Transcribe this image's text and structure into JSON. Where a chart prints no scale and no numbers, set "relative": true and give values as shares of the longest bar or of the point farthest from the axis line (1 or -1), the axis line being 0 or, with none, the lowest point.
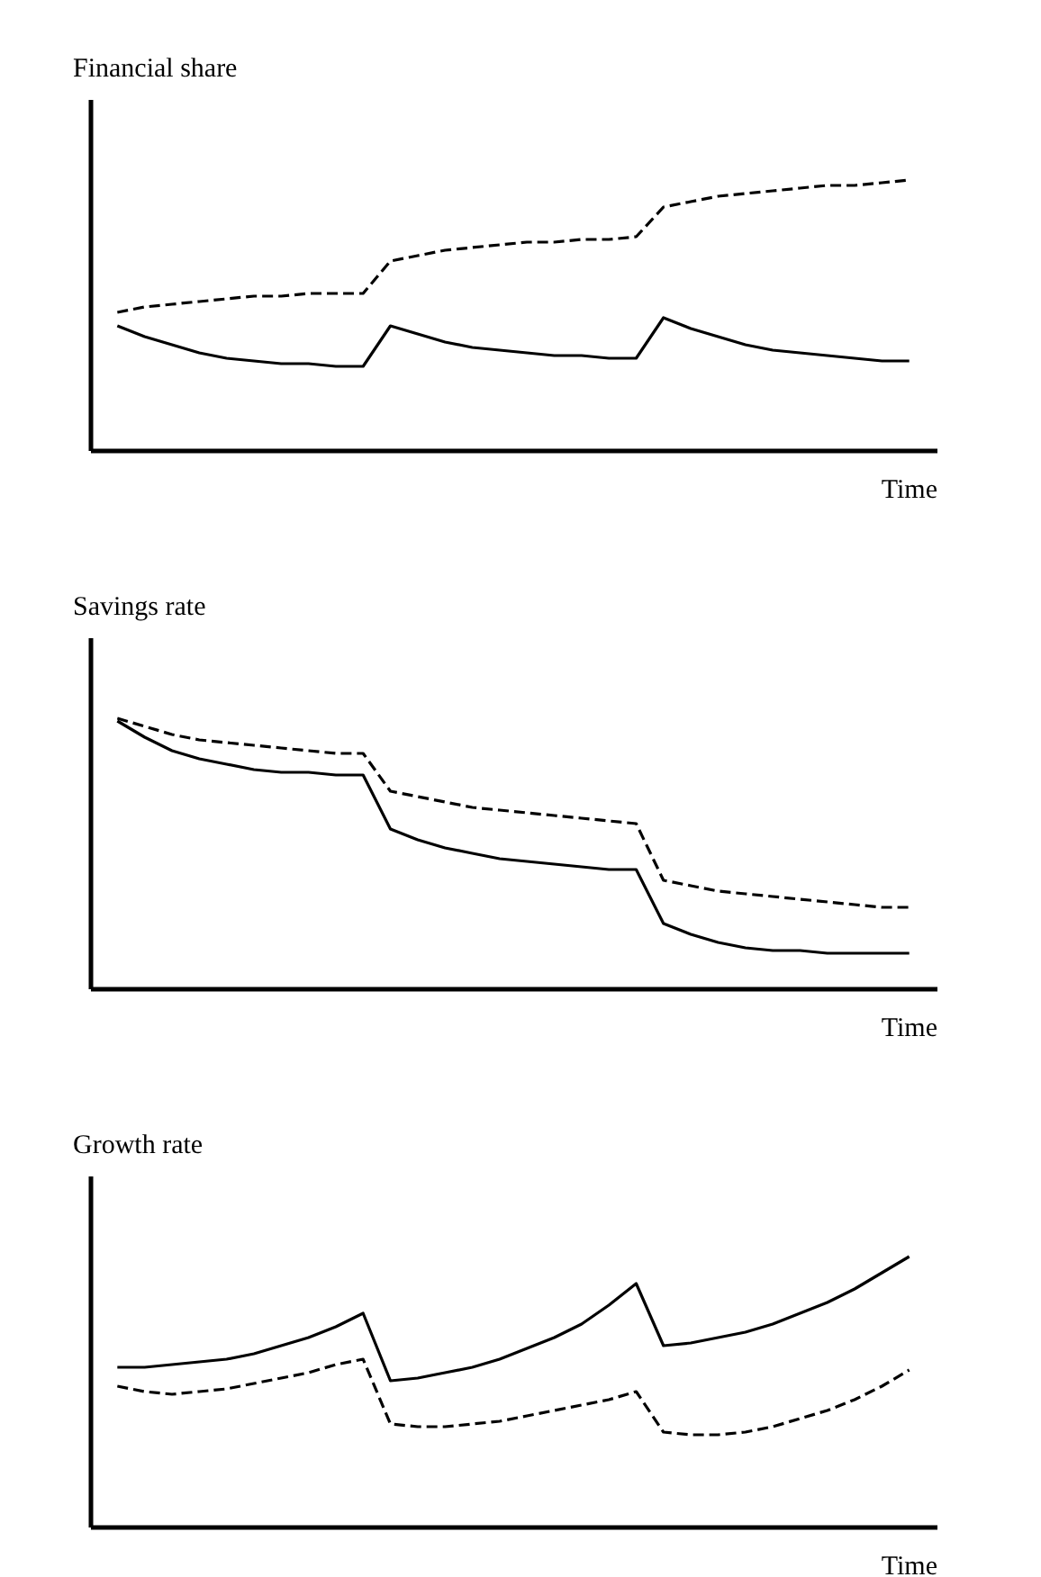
{
  "chart_data": [
    {
      "type": "line",
      "relative": true,
      "ylabel": "Financial share",
      "xlabel": "Time",
      "categories": [
        null,
        null,
        null,
        null,
        null,
        null,
        null,
        null,
        null,
        null,
        null,
        null,
        null,
        null,
        null,
        null,
        null,
        null,
        null,
        null,
        null,
        null,
        null,
        null,
        null,
        null,
        null,
        null,
        null,
        null
      ],
      "tick_labels": false,
      "grid": false,
      "series": [
        {
          "color": "#000000",
          "line_style": "dashed",
          "values": [
            0.51,
            0.53,
            0.54,
            0.55,
            0.56,
            0.57,
            0.57,
            0.58,
            0.58,
            0.58,
            0.7,
            0.72,
            0.74,
            0.75,
            0.76,
            0.77,
            0.77,
            0.78,
            0.78,
            0.79,
            0.9,
            0.92,
            0.94,
            0.95,
            0.96,
            0.97,
            0.98,
            0.98,
            0.99,
            1
          ]
        },
        {
          "color": "#000000",
          "line_style": "solid",
          "values": [
            0.46,
            0.42,
            0.39,
            0.36,
            0.34,
            0.33,
            0.32,
            0.32,
            0.31,
            0.31,
            0.46,
            0.43,
            0.4,
            0.38,
            0.37,
            0.36,
            0.35,
            0.35,
            0.34,
            0.34,
            0.49,
            0.45,
            0.42,
            0.39,
            0.37,
            0.36,
            0.35,
            0.34,
            0.33,
            0.33
          ]
        }
      ]
    },
    {
      "type": "line",
      "relative": true,
      "ylabel": "Savings rate",
      "xlabel": "Time",
      "categories": [
        null,
        null,
        null,
        null,
        null,
        null,
        null,
        null,
        null,
        null,
        null,
        null,
        null,
        null,
        null,
        null,
        null,
        null,
        null,
        null,
        null,
        null,
        null,
        null,
        null,
        null,
        null,
        null,
        null,
        null
      ],
      "tick_labels": false,
      "grid": false,
      "series": [
        {
          "color": "#000000",
          "line_style": "dashed",
          "values": [
            1,
            0.97,
            0.94,
            0.92,
            0.91,
            0.9,
            0.89,
            0.88,
            0.87,
            0.87,
            0.73,
            0.71,
            0.69,
            0.67,
            0.66,
            0.65,
            0.64,
            0.63,
            0.62,
            0.61,
            0.4,
            0.38,
            0.36,
            0.35,
            0.34,
            0.33,
            0.32,
            0.31,
            0.3,
            0.3
          ]
        },
        {
          "color": "#000000",
          "line_style": "solid",
          "values": [
            0.99,
            0.93,
            0.88,
            0.85,
            0.83,
            0.81,
            0.8,
            0.8,
            0.79,
            0.79,
            0.59,
            0.55,
            0.52,
            0.5,
            0.48,
            0.47,
            0.46,
            0.45,
            0.44,
            0.44,
            0.24,
            0.2,
            0.17,
            0.15,
            0.14,
            0.14,
            0.13,
            0.13,
            0.13,
            0.13
          ]
        }
      ]
    },
    {
      "type": "line",
      "relative": true,
      "ylabel": "Growth rate",
      "xlabel": "Time",
      "categories": [
        null,
        null,
        null,
        null,
        null,
        null,
        null,
        null,
        null,
        null,
        null,
        null,
        null,
        null,
        null,
        null,
        null,
        null,
        null,
        null,
        null,
        null,
        null,
        null,
        null,
        null,
        null,
        null,
        null,
        null
      ],
      "tick_labels": false,
      "grid": false,
      "series": [
        {
          "color": "#000000",
          "line_style": "solid",
          "values": [
            0.59,
            0.59,
            0.6,
            0.61,
            0.62,
            0.64,
            0.67,
            0.7,
            0.74,
            0.79,
            0.54,
            0.55,
            0.57,
            0.59,
            0.62,
            0.66,
            0.7,
            0.75,
            0.82,
            0.9,
            0.67,
            0.68,
            0.7,
            0.72,
            0.75,
            0.79,
            0.83,
            0.88,
            0.94,
            1
          ]
        },
        {
          "color": "#000000",
          "line_style": "dashed",
          "values": [
            0.52,
            0.5,
            0.49,
            0.5,
            0.51,
            0.53,
            0.55,
            0.57,
            0.6,
            0.62,
            0.38,
            0.37,
            0.37,
            0.38,
            0.39,
            0.41,
            0.43,
            0.45,
            0.47,
            0.5,
            0.35,
            0.34,
            0.34,
            0.35,
            0.37,
            0.4,
            0.43,
            0.47,
            0.52,
            0.58
          ]
        }
      ]
    }
  ]
}
